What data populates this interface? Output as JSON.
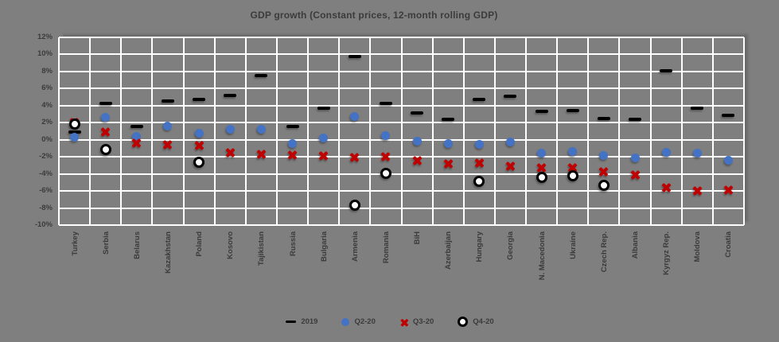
{
  "chart_data": {
    "type": "scatter",
    "title": "GDP growth (Constant prices, 12-month rolling GDP)",
    "grid": true,
    "legend_position": "bottom",
    "background_color": "#7f7f7f",
    "gridline_color": "#ffffff",
    "text_color": "#3b3b3b",
    "ylim": [
      -10,
      12
    ],
    "ytick_values": [
      12,
      10,
      8,
      6,
      4,
      2,
      0,
      -2,
      -4,
      -6,
      -8,
      -10
    ],
    "ytick_labels": [
      "12%",
      "10%",
      "8%",
      "6%",
      "4%",
      "2%",
      "0%",
      "-2%",
      "-4%",
      "-6%",
      "-8%",
      "-10%"
    ],
    "categories": [
      "Turkey",
      "Serbia",
      "Belarus",
      "Kazakhstan",
      "Poland",
      "Kosovo",
      "Tajikistan",
      "Russia",
      "Bulgaria",
      "Armenia",
      "Romania",
      "BiH",
      "Azerbaijan",
      "Hungary",
      "Georgia",
      "N. Macedonia",
      "Ukraine",
      "Czech Rep.",
      "Albania",
      "Kyrgyz Rep.",
      "Moldova",
      "Croatia"
    ],
    "series": [
      {
        "name": "2019",
        "marker": "dash",
        "color": "#000000",
        "values": [
          0.9,
          4.3,
          1.6,
          4.5,
          4.7,
          5.2,
          7.5,
          1.6,
          3.7,
          9.8,
          4.3,
          3.1,
          2.4,
          4.7,
          5.1,
          3.3,
          3.4,
          2.5,
          2.4,
          8.1,
          3.7,
          2.9
        ]
      },
      {
        "name": "Q2-20",
        "marker": "dot",
        "color": "#4472c4",
        "values": [
          0.3,
          2.6,
          0.4,
          1.6,
          0.8,
          1.2,
          1.2,
          -0.4,
          0.2,
          2.7,
          0.5,
          -0.2,
          -0.4,
          -0.5,
          -0.3,
          -1.6,
          -1.4,
          -1.8,
          -2.1,
          -1.5,
          -1.6,
          -2.4
        ]
      },
      {
        "name": "Q3-20",
        "marker": "x",
        "color": "#c00000",
        "values": [
          2.0,
          0.9,
          -0.4,
          -0.6,
          -0.7,
          -1.5,
          -1.7,
          -1.8,
          -1.9,
          -2.1,
          -2.0,
          -2.4,
          -2.8,
          -2.7,
          -3.1,
          -3.3,
          -3.3,
          -3.7,
          -4.1,
          -5.6,
          -6.0,
          -5.9
        ]
      },
      {
        "name": "Q4-20",
        "marker": "ring",
        "color": "#000000",
        "values": [
          1.8,
          -1.1,
          null,
          null,
          -2.6,
          null,
          null,
          null,
          null,
          -7.7,
          -3.9,
          null,
          null,
          -4.9,
          null,
          -4.4,
          -4.2,
          -5.3,
          null,
          null,
          null,
          null
        ]
      }
    ]
  }
}
